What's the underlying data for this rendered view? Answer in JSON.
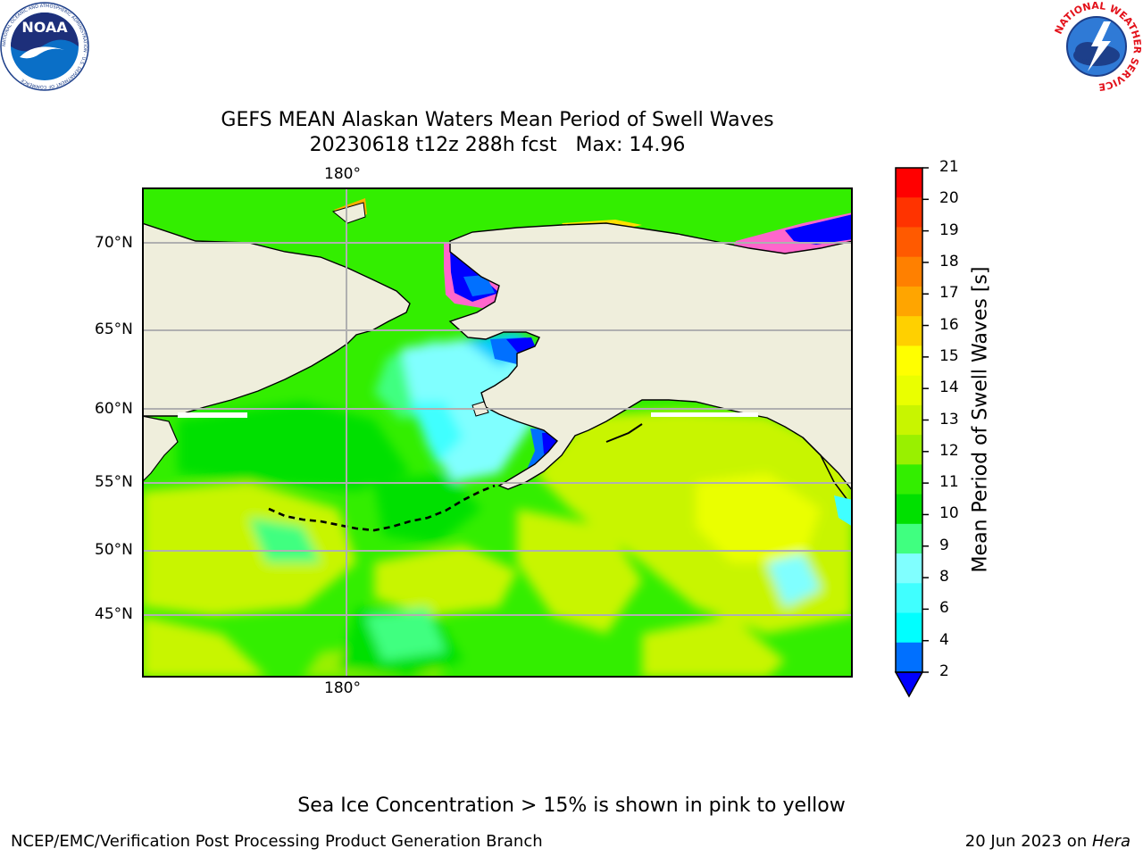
{
  "title": {
    "line1": "GEFS MEAN Alaskan Waters Mean Period of Swell Waves",
    "line2": "20230618 t12z 288h fcst   Max: 14.96"
  },
  "map": {
    "lon_labels_top": [
      "180°"
    ],
    "lon_labels_bottom": [
      "180°"
    ],
    "lat_labels": [
      "70°N",
      "65°N",
      "60°N",
      "55°N",
      "50°N",
      "45°N"
    ]
  },
  "colorbar": {
    "label": "Mean Period of Swell Waves [s]",
    "ticks": [
      "21",
      "20",
      "19",
      "18",
      "17",
      "16",
      "15",
      "14",
      "13",
      "12",
      "11",
      "10",
      "9",
      "8",
      "6",
      "4",
      "2"
    ],
    "colors": [
      "#ff0000",
      "#ff3300",
      "#ff5a00",
      "#ff8000",
      "#ffa500",
      "#ffd000",
      "#ffff00",
      "#eaff00",
      "#c8f500",
      "#99f000",
      "#33ee00",
      "#00e000",
      "#40ff80",
      "#80ffff",
      "#40ffff",
      "#00ffff",
      "#00ccff",
      "#0070ff"
    ],
    "extend_color": "#0000ff"
  },
  "logos": {
    "left": "NOAA",
    "right": "NATIONAL WEATHER SERVICE",
    "left_ring": "NATIONAL OCEANIC AND ATMOSPHERIC ADMINISTRATION · U.S. DEPARTMENT OF COMMERCE"
  },
  "note": "Sea Ice Concentration > 15% is shown in pink to yellow",
  "footer": {
    "left": "NCEP/EMC/Verification Post Processing Product Generation Branch",
    "right_prefix": "20 Jun 2023 on ",
    "right_machine": "Hera"
  }
}
